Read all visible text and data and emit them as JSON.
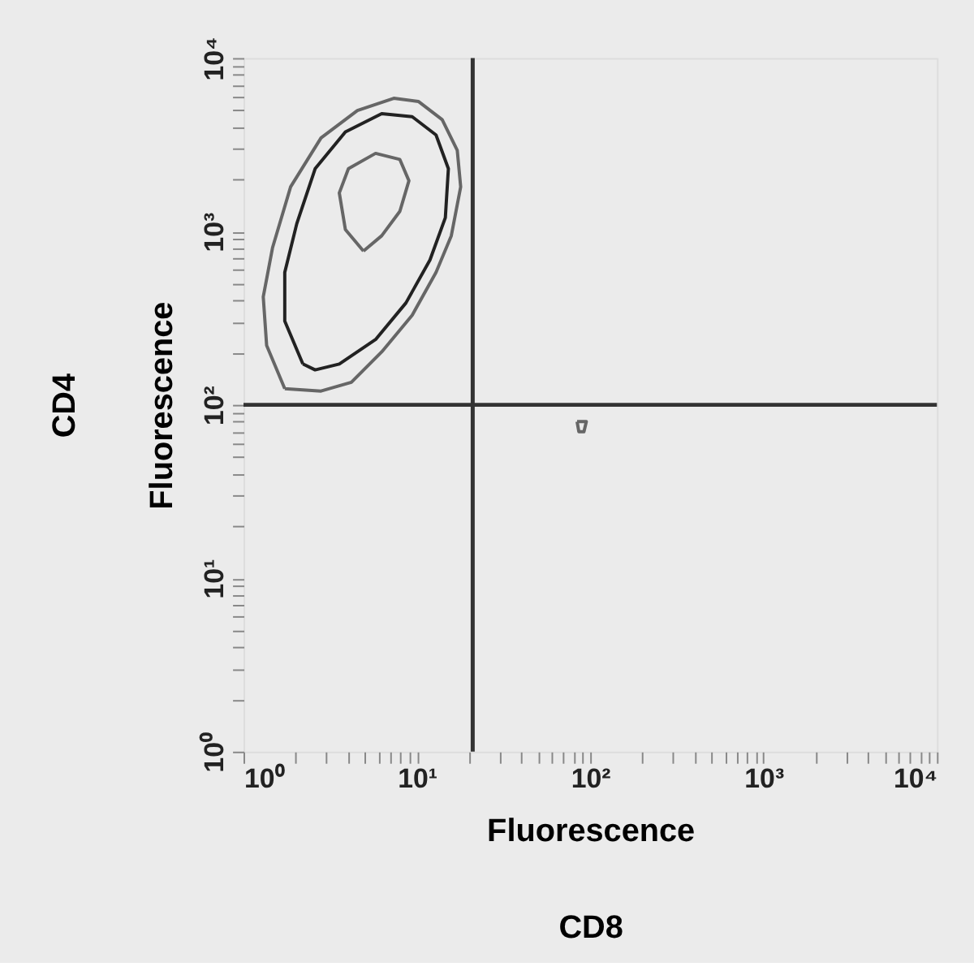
{
  "chart_data": {
    "type": "line",
    "xlabel": "Fluorescence\nCD8",
    "ylabel": "CD4\nFluorescence",
    "xlim": [
      1,
      10000
    ],
    "ylim": [
      1,
      10000
    ],
    "xticks": [
      {
        "value": 1,
        "label": "10⁰"
      },
      {
        "value": 2,
        "label": null
      },
      {
        "value": 3,
        "label": null
      },
      {
        "value": 4,
        "label": null
      },
      {
        "value": 5,
        "label": null
      },
      {
        "value": 6,
        "label": null
      },
      {
        "value": 7,
        "label": null
      },
      {
        "value": 8,
        "label": null
      },
      {
        "value": 9,
        "label": null
      },
      {
        "value": 10,
        "label": "10¹"
      },
      {
        "value": 20,
        "label": null
      },
      {
        "value": 30,
        "label": null
      },
      {
        "value": 40,
        "label": null
      },
      {
        "value": 50,
        "label": null
      },
      {
        "value": 60,
        "label": null
      },
      {
        "value": 70,
        "label": null
      },
      {
        "value": 80,
        "label": null
      },
      {
        "value": 90,
        "label": null
      },
      {
        "value": 100,
        "label": "10²"
      },
      {
        "value": 200,
        "label": null
      },
      {
        "value": 300,
        "label": null
      },
      {
        "value": 400,
        "label": null
      },
      {
        "value": 500,
        "label": null
      },
      {
        "value": 600,
        "label": null
      },
      {
        "value": 700,
        "label": null
      },
      {
        "value": 800,
        "label": null
      },
      {
        "value": 900,
        "label": null
      },
      {
        "value": 1000,
        "label": "10³"
      },
      {
        "value": 2000,
        "label": null
      },
      {
        "value": 3000,
        "label": null
      },
      {
        "value": 4000,
        "label": null
      },
      {
        "value": 5000,
        "label": null
      },
      {
        "value": 6000,
        "label": null
      },
      {
        "value": 7000,
        "label": null
      },
      {
        "value": 8000,
        "label": null
      },
      {
        "value": 9000,
        "label": null
      },
      {
        "value": 10000,
        "label": "10⁴"
      }
    ],
    "yticks": [
      {
        "value": 1,
        "label": "10⁰"
      },
      {
        "value": 2,
        "label": null
      },
      {
        "value": 3,
        "label": null
      },
      {
        "value": 4,
        "label": null
      },
      {
        "value": 5,
        "label": null
      },
      {
        "value": 6,
        "label": null
      },
      {
        "value": 7,
        "label": null
      },
      {
        "value": 8,
        "label": null
      },
      {
        "value": 9,
        "label": null
      },
      {
        "value": 10,
        "label": "10¹"
      },
      {
        "value": 20,
        "label": null
      },
      {
        "value": 30,
        "label": null
      },
      {
        "value": 40,
        "label": null
      },
      {
        "value": 50,
        "label": null
      },
      {
        "value": 60,
        "label": null
      },
      {
        "value": 70,
        "label": null
      },
      {
        "value": 80,
        "label": null
      },
      {
        "value": 90,
        "label": null
      },
      {
        "value": 100,
        "label": "10²"
      },
      {
        "value": 200,
        "label": null
      },
      {
        "value": 300,
        "label": null
      },
      {
        "value": 400,
        "label": null
      },
      {
        "value": 500,
        "label": null
      },
      {
        "value": 600,
        "label": null
      },
      {
        "value": 700,
        "label": null
      },
      {
        "value": 800,
        "label": null
      },
      {
        "value": 900,
        "label": null
      },
      {
        "value": 1000,
        "label": "10³"
      },
      {
        "value": 2000,
        "label": null
      },
      {
        "value": 3000,
        "label": null
      },
      {
        "value": 4000,
        "label": null
      },
      {
        "value": 5000,
        "label": null
      },
      {
        "value": 6000,
        "label": null
      },
      {
        "value": 7000,
        "label": null
      },
      {
        "value": 8000,
        "label": null
      },
      {
        "value": 9000,
        "label": null
      },
      {
        "value": 10000,
        "label": "10⁴"
      }
    ],
    "log": "xy",
    "grid": false,
    "ref_lines": [
      {
        "axis": "x",
        "value": 21,
        "color": "#333333"
      },
      {
        "axis": "y",
        "value": 100,
        "color": "#333333"
      }
    ]
  }
}
